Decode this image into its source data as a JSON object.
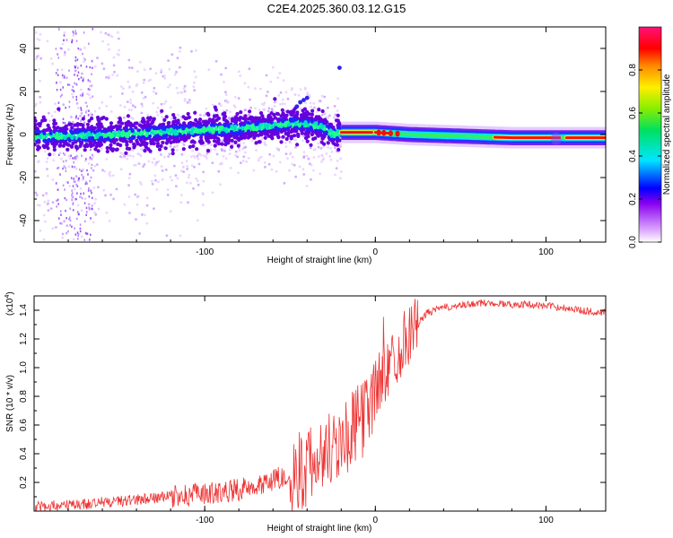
{
  "title": "C2E4.2025.360.03.12.G15",
  "chart_data": [
    {
      "type": "heatmap",
      "name": "doppler-spectrogram",
      "xlabel": "Height of straight line (km)",
      "ylabel": "Frequency (Hz)",
      "xlim": [
        -200,
        135
      ],
      "ylim": [
        -50,
        50
      ],
      "xticks": [
        -100,
        0,
        100
      ],
      "xtick_labels": [
        "-100",
        "0",
        "100"
      ],
      "yticks": [
        -40,
        -20,
        0,
        20,
        40
      ],
      "ytick_labels": [
        "-40",
        "-20",
        "0",
        "20",
        "40"
      ],
      "colorbar": {
        "label": "Normalized spectral amplitude",
        "range": [
          0,
          1
        ],
        "ticks": [
          0.0,
          0.2,
          0.4,
          0.6,
          0.8
        ],
        "tick_labels": [
          "0.0",
          "0.2",
          "0.4",
          "0.6",
          "0.8"
        ]
      },
      "ridge": {
        "x": [
          -200,
          -175,
          -150,
          -125,
          -100,
          -75,
          -50,
          -40,
          -30,
          -25,
          -20,
          0,
          20,
          40,
          60,
          80,
          100,
          120,
          135
        ],
        "freq": [
          -1,
          -0.5,
          0,
          1,
          2,
          3,
          5,
          5,
          3,
          0,
          1,
          1,
          0,
          -0.5,
          -1,
          -1.5,
          -1.5,
          -1.5,
          -1.5
        ]
      }
    },
    {
      "type": "line",
      "name": "snr-profile",
      "xlabel": "Height of straight line (km)",
      "ylabel": "SNR (10 * v/v)",
      "yscale_label": "(x10",
      "yscale_exp": "4",
      "yscale_close": ")",
      "xlim": [
        -200,
        135
      ],
      "ylim": [
        0,
        1.5
      ],
      "xticks": [
        -100,
        0,
        100
      ],
      "xtick_labels": [
        "-100",
        "0",
        "100"
      ],
      "yticks": [
        0.2,
        0.4,
        0.6,
        0.8,
        1.0,
        1.2,
        1.4
      ],
      "ytick_labels": [
        "0.2",
        "0.4",
        "0.6",
        "0.8",
        "1.0",
        "1.2",
        "1.4"
      ],
      "color": "#ee3333",
      "series": [
        {
          "name": "SNR",
          "x": [
            -200,
            -180,
            -160,
            -140,
            -120,
            -100,
            -80,
            -60,
            -50,
            -40,
            -35,
            -30,
            -25,
            -20,
            -15,
            -10,
            -5,
            0,
            5,
            10,
            15,
            20,
            25,
            30,
            40,
            50,
            60,
            70,
            80,
            90,
            100,
            110,
            120,
            135
          ],
          "values": [
            0.03,
            0.04,
            0.06,
            0.08,
            0.1,
            0.12,
            0.15,
            0.22,
            0.25,
            0.3,
            0.35,
            0.4,
            0.45,
            0.5,
            0.55,
            0.6,
            0.7,
            0.85,
            0.95,
            1.05,
            1.15,
            1.25,
            1.3,
            1.38,
            1.42,
            1.43,
            1.45,
            1.45,
            1.44,
            1.44,
            1.43,
            1.42,
            1.4,
            1.38
          ]
        }
      ]
    }
  ]
}
